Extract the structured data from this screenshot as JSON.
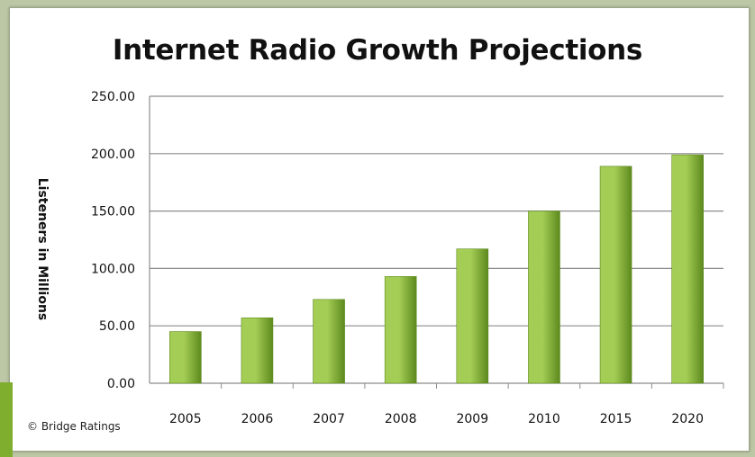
{
  "credit": "© Bridge Ratings",
  "colors": {
    "bar_light": "#a4cd55",
    "bar_dark": "#5d8a1e",
    "grid": "#8c8c8c",
    "background": "#ffffff"
  },
  "chart_data": {
    "type": "bar",
    "title": "Internet Radio Growth Projections",
    "xlabel": "",
    "ylabel": "Listeners in Millions",
    "categories": [
      "2005",
      "2006",
      "2007",
      "2008",
      "2009",
      "2010",
      "2015",
      "2020"
    ],
    "values": [
      45,
      57,
      73,
      93,
      117,
      150,
      189,
      199
    ],
    "ylim": [
      0,
      250
    ],
    "yticks": [
      "0.00",
      "50.00",
      "100.00",
      "150.00",
      "200.00",
      "250.00"
    ],
    "grid": true,
    "legend": "none"
  }
}
